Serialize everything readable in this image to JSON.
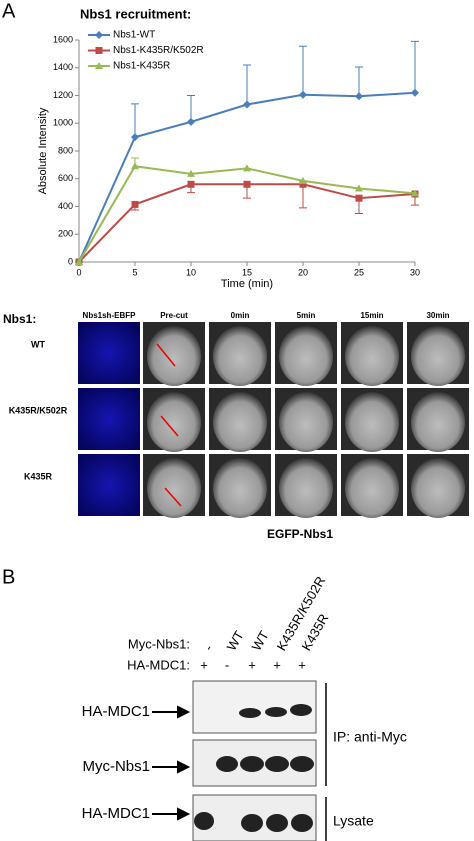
{
  "panel_a_label": "A",
  "chart_data": {
    "type": "line",
    "title": "Nbs1 recruitment:",
    "x_label": "Time (min)",
    "y_label": "Absolute Intensity",
    "x": [
      0,
      5,
      10,
      15,
      20,
      25,
      30
    ],
    "series": [
      {
        "name": "Nbs1-WT",
        "color": "#4a7ebb",
        "marker": "diamond",
        "error_direction": "up",
        "values": [
          0,
          900,
          1010,
          1135,
          1205,
          1195,
          1220
        ],
        "errors": [
          0,
          240,
          190,
          285,
          350,
          210,
          370
        ]
      },
      {
        "name": "Nbs1-K435R/K502R",
        "color": "#be4b48",
        "marker": "square",
        "error_direction": "down",
        "values": [
          0,
          415,
          560,
          560,
          560,
          460,
          490
        ],
        "errors": [
          0,
          40,
          60,
          100,
          170,
          110,
          80
        ]
      },
      {
        "name": "Nbs1-K435R",
        "color": "#98b954",
        "marker": "triangle",
        "error_direction": "up",
        "values": [
          0,
          690,
          635,
          675,
          585,
          530,
          495
        ],
        "errors": [
          0,
          60,
          0,
          0,
          0,
          0,
          0
        ]
      }
    ],
    "xlim": [
      0,
      30
    ],
    "xticks": [
      0,
      5,
      10,
      15,
      20,
      25,
      30
    ],
    "ylim": [
      0,
      1600
    ],
    "yticks": [
      0,
      200,
      400,
      600,
      800,
      1000,
      1200,
      1400,
      1600
    ]
  },
  "microscopy": {
    "label": "Nbs1:",
    "columns": [
      "Nbs1sh-EBFP",
      "Pre-cut",
      "0min",
      "5min",
      "15min",
      "30min"
    ],
    "rows": [
      "WT",
      "K435R/K502R",
      "K435R"
    ],
    "caption": "EGFP-Nbs1"
  },
  "panel_b": {
    "label": "B",
    "myc_label": "Myc-Nbs1:",
    "ha_label": "HA-MDC1:",
    "lanes_myc": [
      "-",
      "WT",
      "WT",
      "K435R/K502R",
      "K435R"
    ],
    "lanes_ha": [
      "+",
      "-",
      "+",
      "+",
      "+"
    ],
    "blots": [
      "HA-MDC1",
      "Myc-Nbs1",
      "HA-MDC1"
    ],
    "ip_label": "IP: anti-Myc",
    "lysate_label": "Lysate"
  }
}
